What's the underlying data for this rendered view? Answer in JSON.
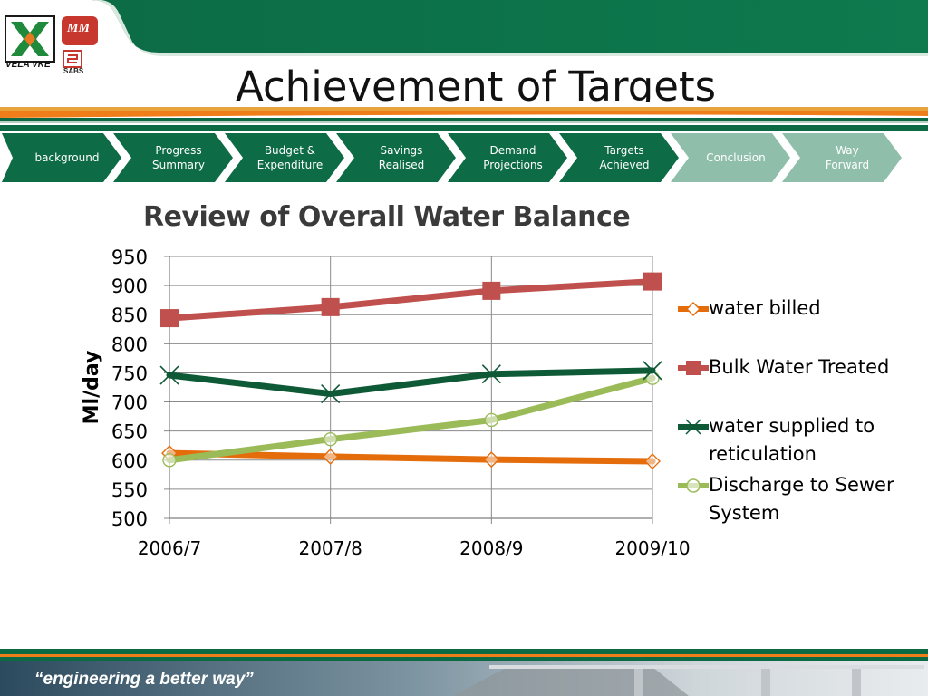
{
  "header": {
    "title": "Achievement of Targets",
    "logo_left_text": "VELA VKE",
    "logo_right_top": "MM",
    "logo_right_bottom": "SABS"
  },
  "nav": {
    "steps": [
      {
        "label": "background",
        "state": "done"
      },
      {
        "label": "Progress\nSummary",
        "state": "done"
      },
      {
        "label": "Budget &\nExpenditure",
        "state": "done"
      },
      {
        "label": "Savings\nRealised",
        "state": "done"
      },
      {
        "label": "Demand\nProjections",
        "state": "done"
      },
      {
        "label": "Targets\nAchieved",
        "state": "done"
      },
      {
        "label": "Conclusion",
        "state": "pending"
      },
      {
        "label": "Way\nForward",
        "state": "pending"
      }
    ],
    "colors": {
      "done": "#0d6b45",
      "pending": "#8fbfab"
    }
  },
  "chart_data": {
    "type": "line",
    "title": "Review of Overall Water Balance",
    "xlabel": "",
    "ylabel": "Ml/day",
    "categories": [
      "2006/7",
      "2007/8",
      "2008/9",
      "2009/10"
    ],
    "ylim": [
      500,
      950
    ],
    "yticks": [
      500,
      550,
      600,
      650,
      700,
      750,
      800,
      850,
      900,
      950
    ],
    "grid": true,
    "legend_position": "right",
    "series": [
      {
        "name": "water billed",
        "values": [
          612,
          606,
          601,
          598
        ],
        "color": "#e46c0a",
        "marker": "diamond"
      },
      {
        "name": "Bulk Water Treated",
        "values": [
          844,
          863,
          891,
          907
        ],
        "color": "#c0504d",
        "marker": "square"
      },
      {
        "name": "water supplied to reticulation",
        "values": [
          746,
          714,
          748,
          754
        ],
        "color": "#0f5a36",
        "marker": "x"
      },
      {
        "name": "Discharge to Sewer System",
        "values": [
          600,
          636,
          669,
          741
        ],
        "color": "#9bbb59",
        "marker": "circle"
      }
    ]
  },
  "footer": {
    "tagline": "“engineering a better way”"
  }
}
